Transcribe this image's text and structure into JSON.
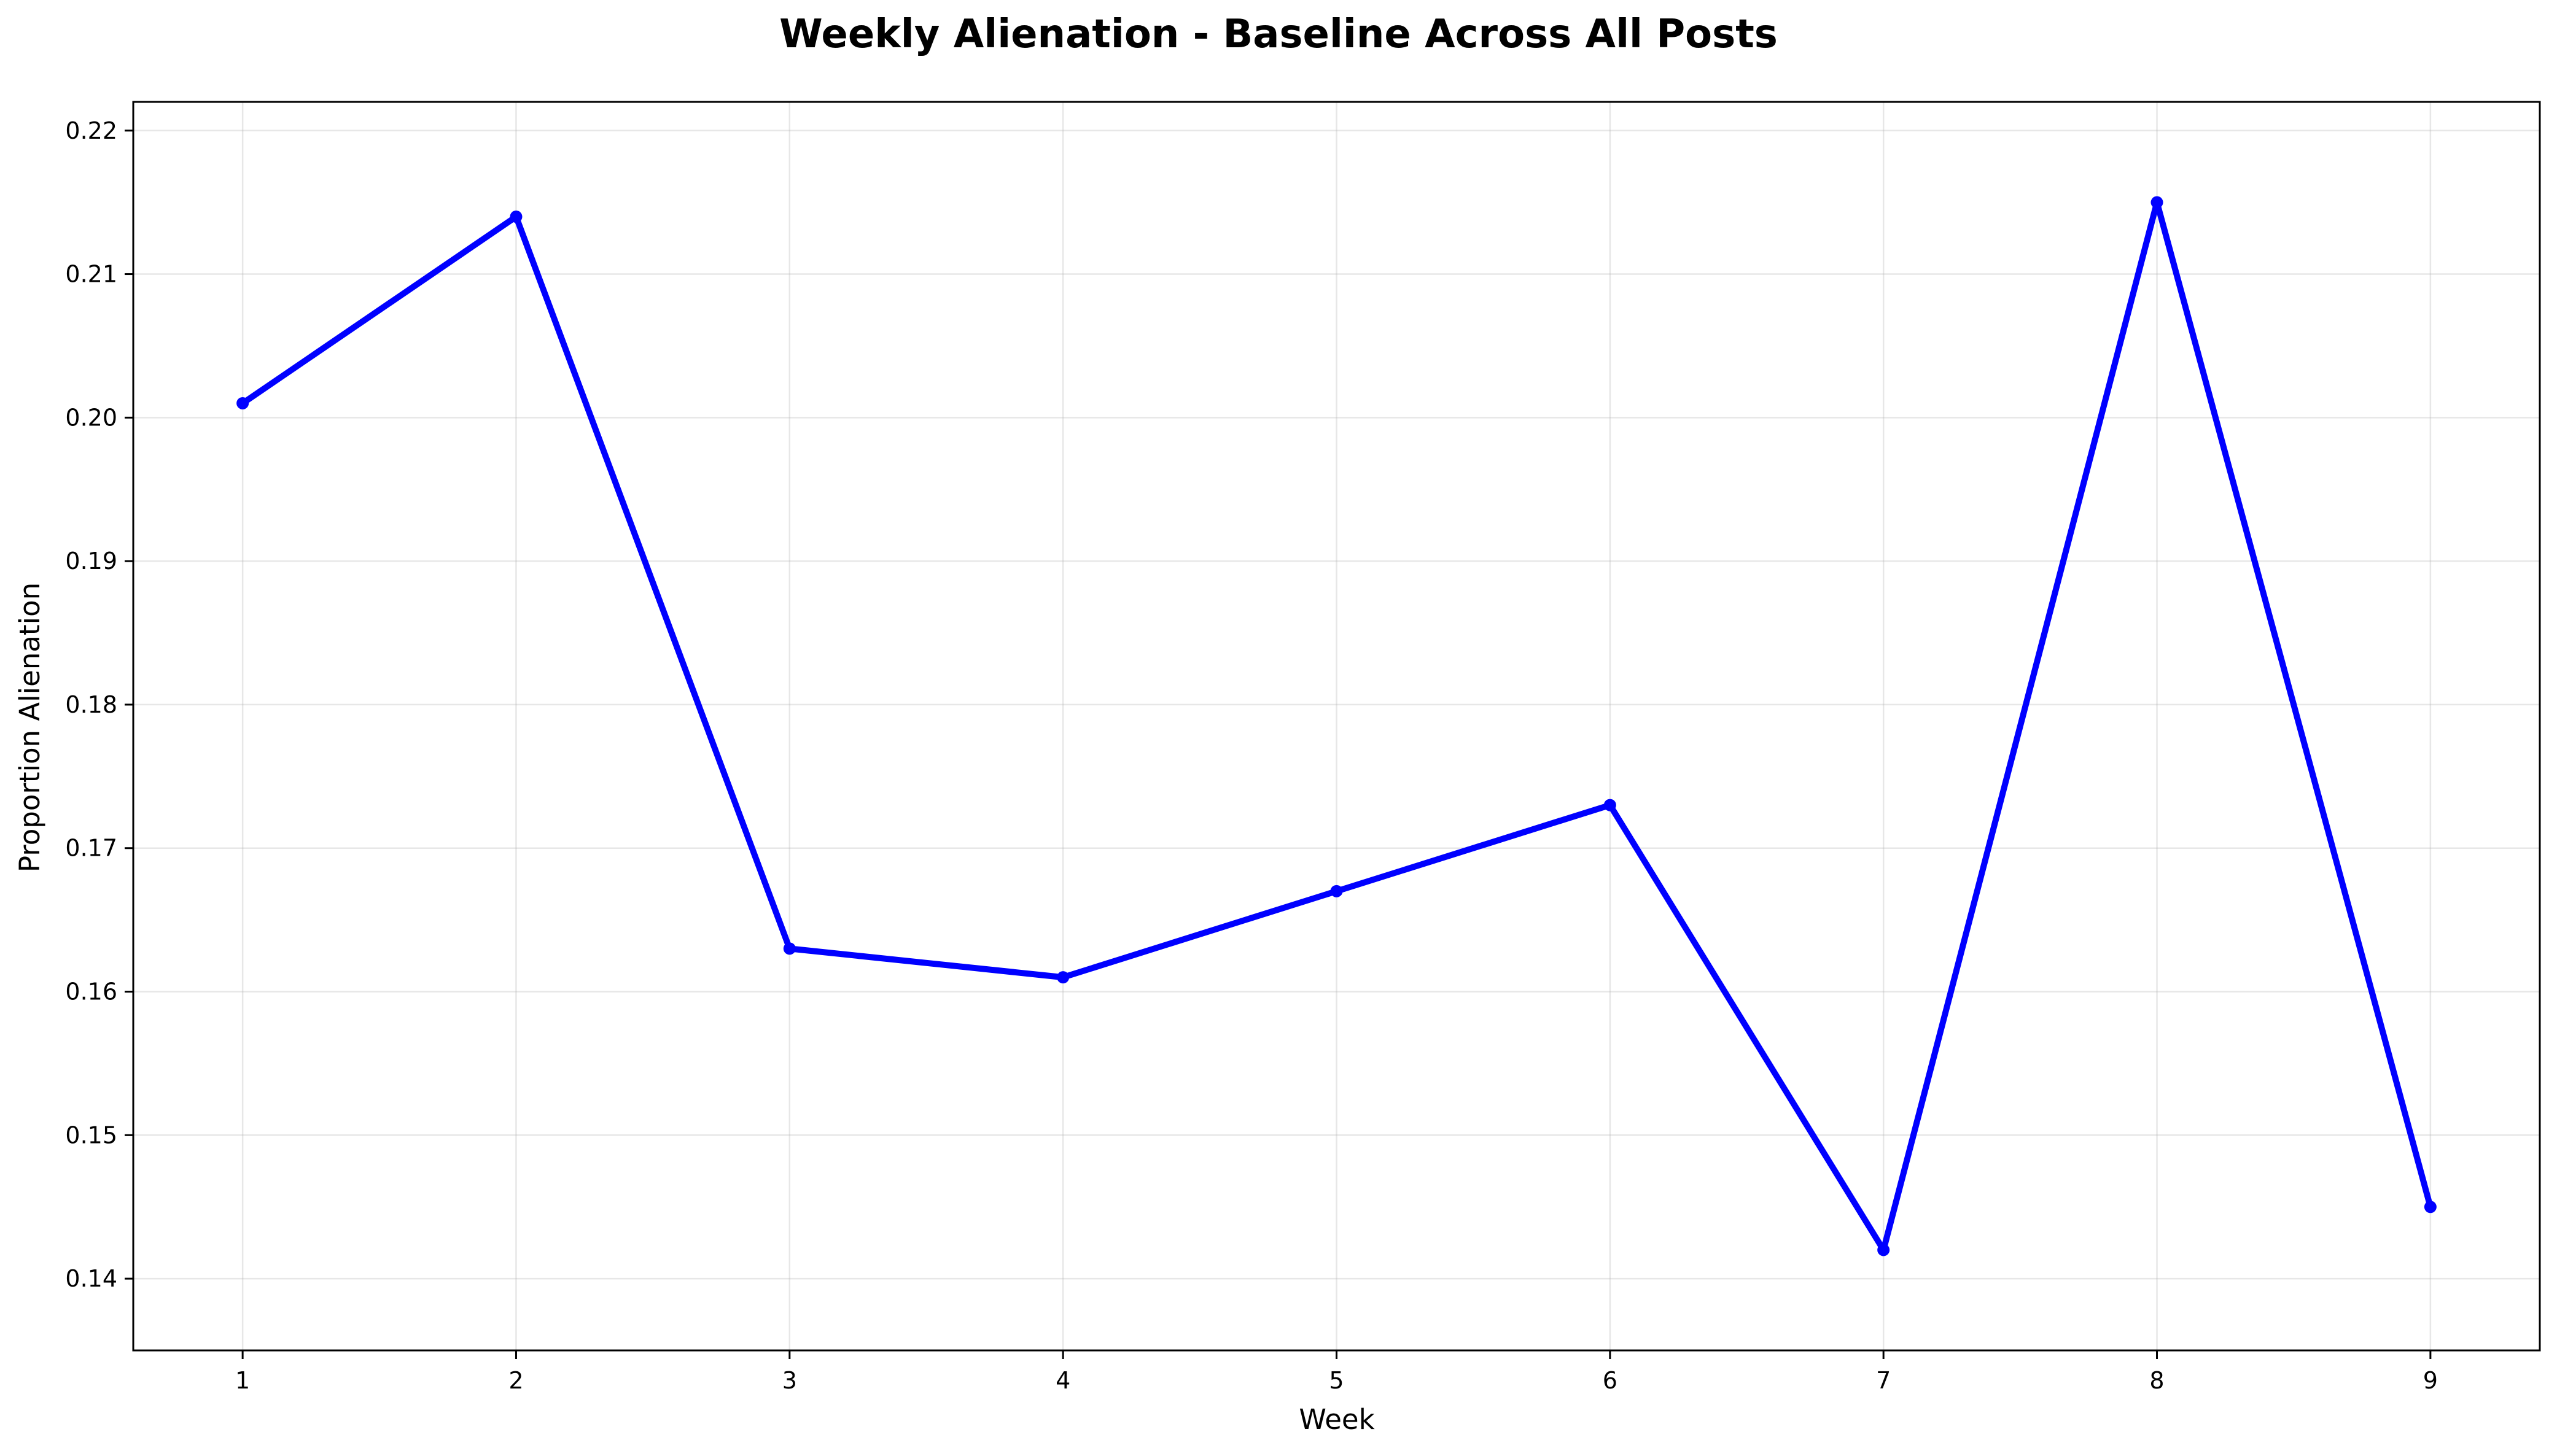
{
  "chart_data": {
    "type": "line",
    "title": "Weekly Alienation - Baseline Across All Posts",
    "xlabel": "Week",
    "ylabel": "Proportion Alienation",
    "x": [
      1,
      2,
      3,
      4,
      5,
      6,
      7,
      8,
      9
    ],
    "series": [
      {
        "values": [
          0.201,
          0.214,
          0.163,
          0.161,
          0.167,
          0.173,
          0.142,
          0.215,
          0.145
        ],
        "color": "#0000ff",
        "marker": "circle"
      }
    ],
    "xlim": [
      0.6,
      9.4
    ],
    "ylim": [
      0.135,
      0.222
    ],
    "xticks": [
      "1",
      "2",
      "3",
      "4",
      "5",
      "6",
      "7",
      "8",
      "9"
    ],
    "yticks": [
      "0.14",
      "0.15",
      "0.16",
      "0.17",
      "0.18",
      "0.19",
      "0.20",
      "0.21",
      "0.22"
    ],
    "grid": true,
    "legend": "none"
  }
}
